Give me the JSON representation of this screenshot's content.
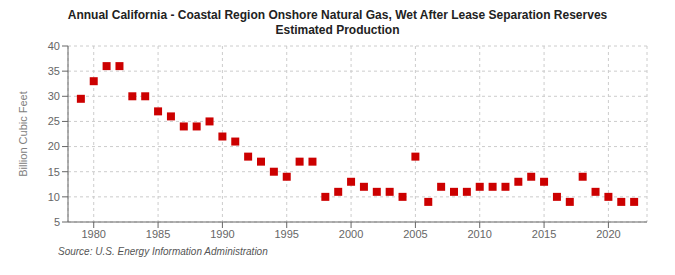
{
  "chart_data": {
    "type": "scatter",
    "title": "Annual California - Coastal Region Onshore Natural Gas, Wet After Lease Separation Reserves\nEstimated Production",
    "y_label": "Billion Cubic Feet",
    "annotations": [
      "Source: U.S. Energy Information Administration"
    ],
    "x": [
      1979,
      1980,
      1981,
      1982,
      1983,
      1984,
      1985,
      1986,
      1987,
      1988,
      1989,
      1990,
      1991,
      1992,
      1993,
      1994,
      1995,
      1996,
      1997,
      1998,
      1999,
      2000,
      2001,
      2002,
      2003,
      2004,
      2005,
      2006,
      2007,
      2008,
      2009,
      2010,
      2011,
      2012,
      2013,
      2014,
      2015,
      2016,
      2017,
      2018,
      2019,
      2020,
      2021,
      2022
    ],
    "values": [
      29.5,
      33,
      36,
      36,
      30,
      30,
      27,
      26,
      24,
      24,
      25,
      22,
      21,
      18,
      17,
      15,
      14,
      17,
      17,
      10,
      11,
      13,
      12,
      11,
      11,
      10,
      18,
      9,
      12,
      11,
      11,
      12,
      12,
      12,
      13,
      14,
      13,
      10,
      9,
      14,
      11,
      10,
      9,
      9
    ],
    "color": "#cc0000",
    "marker": "square",
    "xlim": [
      1978,
      2023
    ],
    "xticks": [
      1980,
      1985,
      1990,
      1995,
      2000,
      2005,
      2010,
      2015,
      2020
    ],
    "ylim": [
      5,
      40
    ],
    "yticks": [
      5,
      10,
      15,
      20,
      25,
      30,
      35,
      40
    ],
    "grid": true
  }
}
